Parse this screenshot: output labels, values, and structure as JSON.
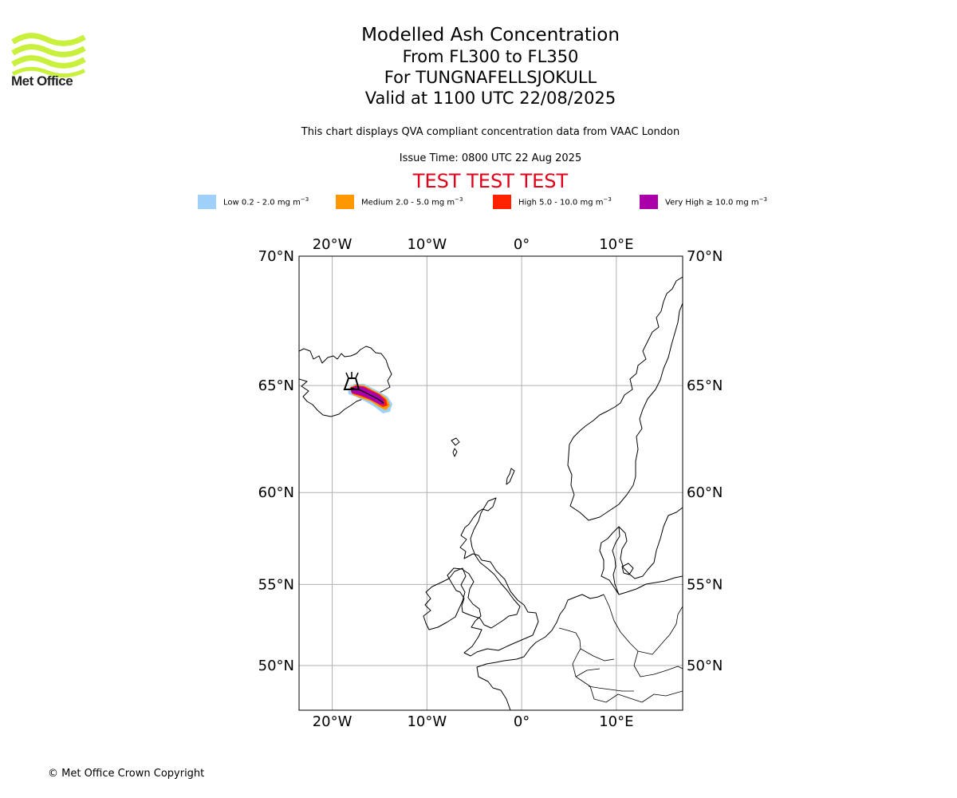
{
  "header": {
    "logo_icon": "met-office-wave-logo-icon",
    "logo_text": "Met Office",
    "title": "Modelled Ash Concentration",
    "flight_levels": "From FL300 to FL350",
    "volcano": "For TUNGNAFELLSJOKULL",
    "valid_time": "Valid at 1100 UTC 22/08/2025",
    "description": "This chart displays QVA compliant concentration data from VAAC London",
    "issue_time": "Issue Time: 0800 UTC 22 Aug 2025",
    "test_banner": "TEST TEST TEST"
  },
  "legend": [
    {
      "label": "Low 0.2 - 2.0 mg m",
      "exp": "−3",
      "color": "#9ed0fa"
    },
    {
      "label": "Medium 2.0 - 5.0 mg m",
      "exp": "−3",
      "color": "#ff9800"
    },
    {
      "label": "High 5.0 - 10.0 mg m",
      "exp": "−3",
      "color": "#ff2200"
    },
    {
      "label": "Very High ≥ 10.0 mg m",
      "exp": "−3",
      "color": "#aa00aa"
    }
  ],
  "map": {
    "lon_range": [
      -23.5,
      17
    ],
    "lat_range": [
      47,
      70
    ],
    "gridlines": true,
    "lon_ticks": [
      {
        "value": -20,
        "label": "20°W"
      },
      {
        "value": -10,
        "label": "10°W"
      },
      {
        "value": 0,
        "label": "0°"
      },
      {
        "value": 10,
        "label": "10°E"
      }
    ],
    "lat_ticks": [
      {
        "value": 70,
        "label": "70°N"
      },
      {
        "value": 65,
        "label": "65°N"
      },
      {
        "value": 60,
        "label": "60°N"
      },
      {
        "value": 55,
        "label": "55°N"
      },
      {
        "value": 50,
        "label": "50°N"
      }
    ],
    "volcano_icon": "volcano-symbol-icon",
    "volcano_location": [
      -17.9,
      64.8
    ]
  },
  "footer": {
    "copyright": "© Met Office Crown Copyright"
  }
}
